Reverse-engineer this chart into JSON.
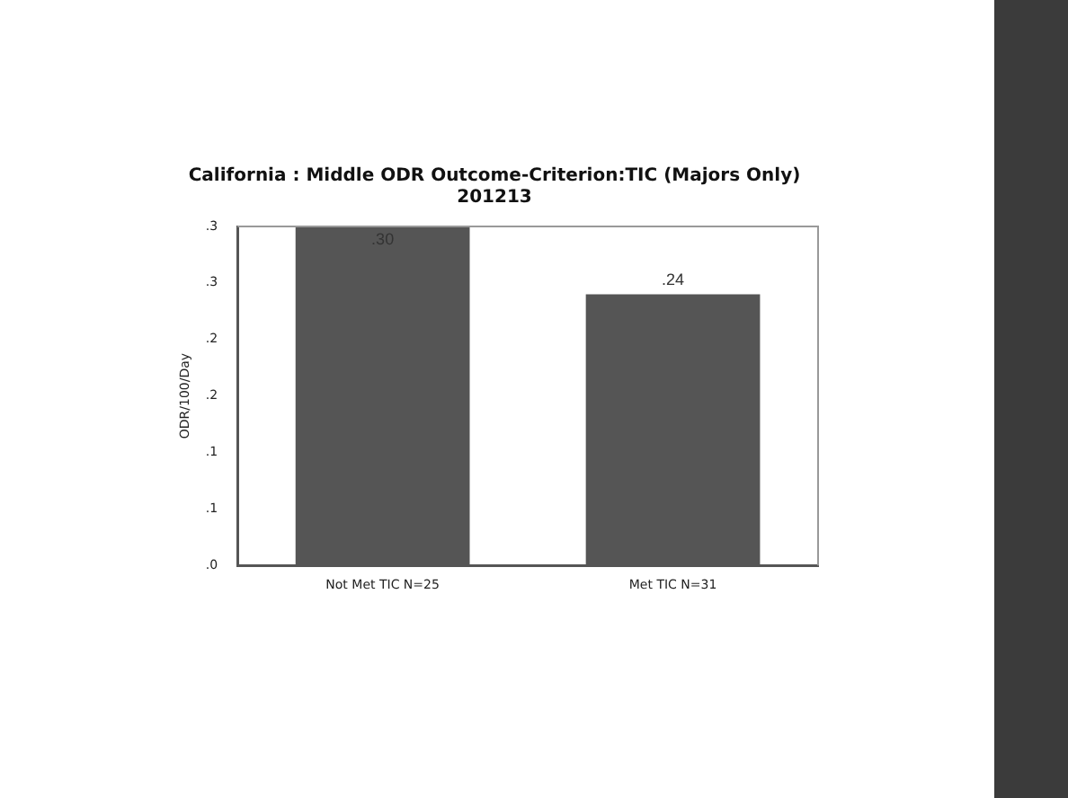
{
  "chart_data": {
    "type": "bar",
    "title": "California : Middle ODR Outcome-Criterion:TIC (Majors Only)",
    "subtitle": "201213",
    "ylabel": "ODR/100/Day",
    "categories": [
      "Not Met TIC N=25",
      "Met TIC N=31"
    ],
    "values": [
      0.3,
      0.24
    ],
    "value_labels": [
      ".30",
      ".24"
    ],
    "color": "#555555",
    "ylim": [
      0,
      0.3
    ],
    "yticks": [
      {
        "value": 0,
        "label": ".0"
      },
      {
        "value": 0.05,
        "label": ".1"
      },
      {
        "value": 0.1,
        "label": ".1"
      },
      {
        "value": 0.15,
        "label": ".2"
      },
      {
        "value": 0.2,
        "label": ".2"
      },
      {
        "value": 0.25,
        "label": ".3"
      },
      {
        "value": 0.3,
        "label": ".3"
      }
    ],
    "grid": false,
    "legend": false
  }
}
